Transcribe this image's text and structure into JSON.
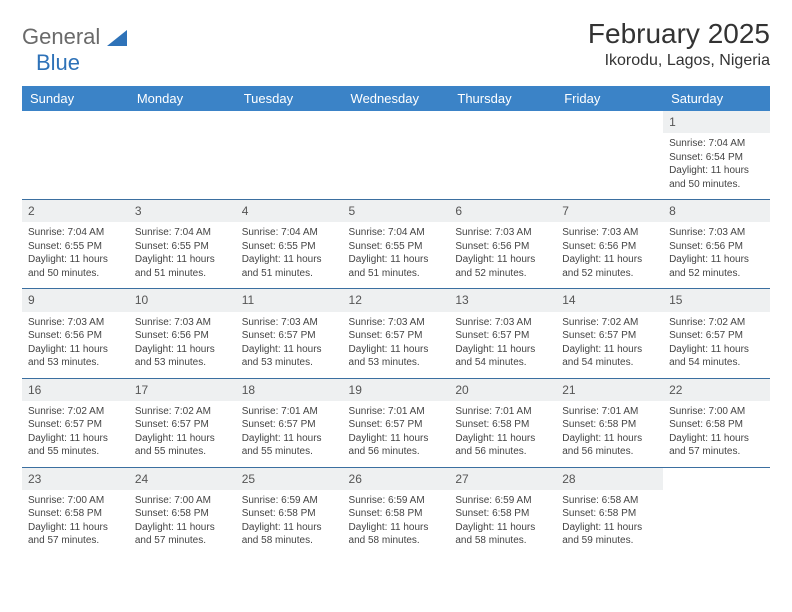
{
  "logo": {
    "text_general": "General",
    "text_blue": "Blue"
  },
  "header": {
    "month_title": "February 2025",
    "location": "Ikorodu, Lagos, Nigeria"
  },
  "colors": {
    "header_bg": "#3b83c7",
    "header_text": "#ffffff",
    "row_divider": "#3b6fa0",
    "daynum_bg": "#eef0f1",
    "body_text": "#444444",
    "logo_gray": "#6a6a6a",
    "logo_blue": "#2e72b8"
  },
  "typography": {
    "title_fontsize": 28,
    "location_fontsize": 16,
    "header_fontsize": 13,
    "daynum_fontsize": 12,
    "body_fontsize": 10
  },
  "days_of_week": [
    "Sunday",
    "Monday",
    "Tuesday",
    "Wednesday",
    "Thursday",
    "Friday",
    "Saturday"
  ],
  "weeks": [
    {
      "nums": [
        "",
        "",
        "",
        "",
        "",
        "",
        "1"
      ],
      "cells": [
        null,
        null,
        null,
        null,
        null,
        null,
        {
          "sunrise": "Sunrise: 7:04 AM",
          "sunset": "Sunset: 6:54 PM",
          "daylight": "Daylight: 11 hours and 50 minutes."
        }
      ]
    },
    {
      "nums": [
        "2",
        "3",
        "4",
        "5",
        "6",
        "7",
        "8"
      ],
      "cells": [
        {
          "sunrise": "Sunrise: 7:04 AM",
          "sunset": "Sunset: 6:55 PM",
          "daylight": "Daylight: 11 hours and 50 minutes."
        },
        {
          "sunrise": "Sunrise: 7:04 AM",
          "sunset": "Sunset: 6:55 PM",
          "daylight": "Daylight: 11 hours and 51 minutes."
        },
        {
          "sunrise": "Sunrise: 7:04 AM",
          "sunset": "Sunset: 6:55 PM",
          "daylight": "Daylight: 11 hours and 51 minutes."
        },
        {
          "sunrise": "Sunrise: 7:04 AM",
          "sunset": "Sunset: 6:55 PM",
          "daylight": "Daylight: 11 hours and 51 minutes."
        },
        {
          "sunrise": "Sunrise: 7:03 AM",
          "sunset": "Sunset: 6:56 PM",
          "daylight": "Daylight: 11 hours and 52 minutes."
        },
        {
          "sunrise": "Sunrise: 7:03 AM",
          "sunset": "Sunset: 6:56 PM",
          "daylight": "Daylight: 11 hours and 52 minutes."
        },
        {
          "sunrise": "Sunrise: 7:03 AM",
          "sunset": "Sunset: 6:56 PM",
          "daylight": "Daylight: 11 hours and 52 minutes."
        }
      ]
    },
    {
      "nums": [
        "9",
        "10",
        "11",
        "12",
        "13",
        "14",
        "15"
      ],
      "cells": [
        {
          "sunrise": "Sunrise: 7:03 AM",
          "sunset": "Sunset: 6:56 PM",
          "daylight": "Daylight: 11 hours and 53 minutes."
        },
        {
          "sunrise": "Sunrise: 7:03 AM",
          "sunset": "Sunset: 6:56 PM",
          "daylight": "Daylight: 11 hours and 53 minutes."
        },
        {
          "sunrise": "Sunrise: 7:03 AM",
          "sunset": "Sunset: 6:57 PM",
          "daylight": "Daylight: 11 hours and 53 minutes."
        },
        {
          "sunrise": "Sunrise: 7:03 AM",
          "sunset": "Sunset: 6:57 PM",
          "daylight": "Daylight: 11 hours and 53 minutes."
        },
        {
          "sunrise": "Sunrise: 7:03 AM",
          "sunset": "Sunset: 6:57 PM",
          "daylight": "Daylight: 11 hours and 54 minutes."
        },
        {
          "sunrise": "Sunrise: 7:02 AM",
          "sunset": "Sunset: 6:57 PM",
          "daylight": "Daylight: 11 hours and 54 minutes."
        },
        {
          "sunrise": "Sunrise: 7:02 AM",
          "sunset": "Sunset: 6:57 PM",
          "daylight": "Daylight: 11 hours and 54 minutes."
        }
      ]
    },
    {
      "nums": [
        "16",
        "17",
        "18",
        "19",
        "20",
        "21",
        "22"
      ],
      "cells": [
        {
          "sunrise": "Sunrise: 7:02 AM",
          "sunset": "Sunset: 6:57 PM",
          "daylight": "Daylight: 11 hours and 55 minutes."
        },
        {
          "sunrise": "Sunrise: 7:02 AM",
          "sunset": "Sunset: 6:57 PM",
          "daylight": "Daylight: 11 hours and 55 minutes."
        },
        {
          "sunrise": "Sunrise: 7:01 AM",
          "sunset": "Sunset: 6:57 PM",
          "daylight": "Daylight: 11 hours and 55 minutes."
        },
        {
          "sunrise": "Sunrise: 7:01 AM",
          "sunset": "Sunset: 6:57 PM",
          "daylight": "Daylight: 11 hours and 56 minutes."
        },
        {
          "sunrise": "Sunrise: 7:01 AM",
          "sunset": "Sunset: 6:58 PM",
          "daylight": "Daylight: 11 hours and 56 minutes."
        },
        {
          "sunrise": "Sunrise: 7:01 AM",
          "sunset": "Sunset: 6:58 PM",
          "daylight": "Daylight: 11 hours and 56 minutes."
        },
        {
          "sunrise": "Sunrise: 7:00 AM",
          "sunset": "Sunset: 6:58 PM",
          "daylight": "Daylight: 11 hours and 57 minutes."
        }
      ]
    },
    {
      "nums": [
        "23",
        "24",
        "25",
        "26",
        "27",
        "28",
        ""
      ],
      "cells": [
        {
          "sunrise": "Sunrise: 7:00 AM",
          "sunset": "Sunset: 6:58 PM",
          "daylight": "Daylight: 11 hours and 57 minutes."
        },
        {
          "sunrise": "Sunrise: 7:00 AM",
          "sunset": "Sunset: 6:58 PM",
          "daylight": "Daylight: 11 hours and 57 minutes."
        },
        {
          "sunrise": "Sunrise: 6:59 AM",
          "sunset": "Sunset: 6:58 PM",
          "daylight": "Daylight: 11 hours and 58 minutes."
        },
        {
          "sunrise": "Sunrise: 6:59 AM",
          "sunset": "Sunset: 6:58 PM",
          "daylight": "Daylight: 11 hours and 58 minutes."
        },
        {
          "sunrise": "Sunrise: 6:59 AM",
          "sunset": "Sunset: 6:58 PM",
          "daylight": "Daylight: 11 hours and 58 minutes."
        },
        {
          "sunrise": "Sunrise: 6:58 AM",
          "sunset": "Sunset: 6:58 PM",
          "daylight": "Daylight: 11 hours and 59 minutes."
        },
        null
      ]
    }
  ]
}
